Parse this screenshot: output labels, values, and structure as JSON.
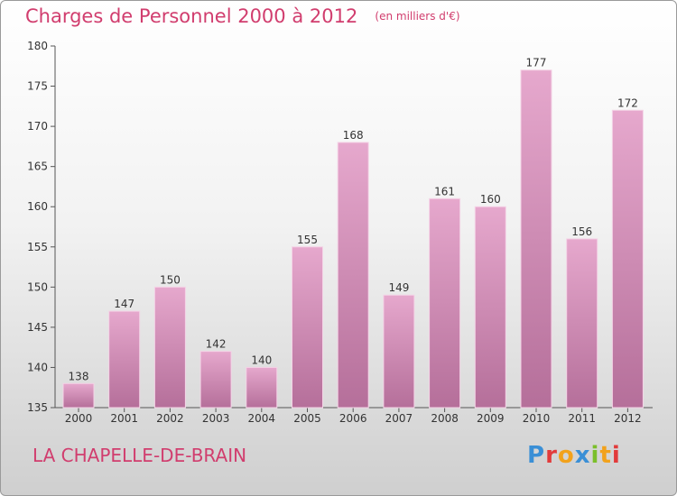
{
  "header": {
    "title": "Charges de Personnel 2000 à 2012",
    "subtitle": "(en milliers d'€)"
  },
  "footer": {
    "commune": "LA CHAPELLE-DE-BRAIN",
    "logo": "Proxiti",
    "logo_colors": [
      "#3a8fd6",
      "#e23b3b",
      "#f2a21c",
      "#3a8fd6",
      "#7bbf2a",
      "#f2a21c",
      "#e23b3b"
    ]
  },
  "colors": {
    "bar_light": "#e6a8cd",
    "bar_dark": "#b56f9a",
    "title": "#d13d6e",
    "axis": "#555555"
  },
  "chart_data": {
    "type": "bar",
    "categories": [
      "2000",
      "2001",
      "2002",
      "2003",
      "2004",
      "2005",
      "2006",
      "2007",
      "2008",
      "2009",
      "2010",
      "2011",
      "2012"
    ],
    "values": [
      138,
      147,
      150,
      142,
      140,
      155,
      168,
      149,
      161,
      160,
      177,
      156,
      172
    ],
    "ylim": [
      135,
      180
    ],
    "yticks": [
      135,
      140,
      145,
      150,
      155,
      160,
      165,
      170,
      175,
      180
    ],
    "grid": false,
    "data_labels": true
  }
}
